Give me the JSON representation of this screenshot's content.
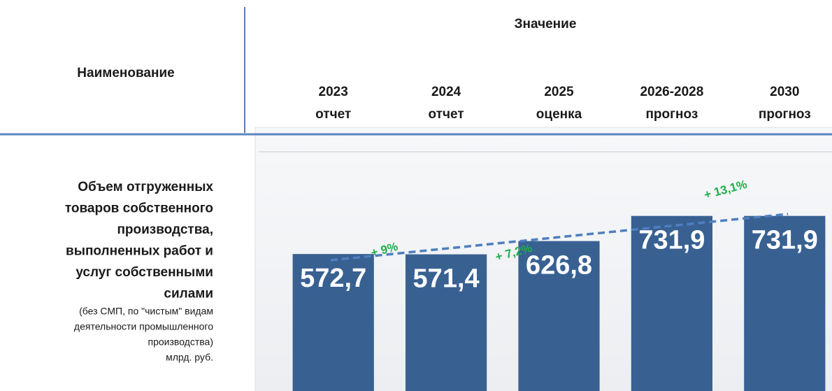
{
  "header": {
    "value_column": "Значение",
    "name_column": "Наименование"
  },
  "row": {
    "label_lines": [
      "Объем отгруженных",
      "товаров собственного",
      "производства,",
      "выполненных работ и",
      "услуг собственными",
      "силами"
    ],
    "note_lines": [
      "(без СМП, по \"чистым\" видам",
      "деятельности промышленного",
      "производства)",
      "млрд. руб."
    ]
  },
  "chart_data": {
    "type": "bar",
    "categories": [
      {
        "year": "2023",
        "status": "отчет"
      },
      {
        "year": "2024",
        "status": "отчет"
      },
      {
        "year": "2025",
        "status": "оценка"
      },
      {
        "year": "2026-2028",
        "status": "прогноз"
      },
      {
        "year": "2030",
        "status": "прогноз"
      }
    ],
    "values": [
      572.7,
      571.4,
      626.8,
      731.9,
      731.9
    ],
    "value_labels": [
      "572,7",
      "571,4",
      "626,8",
      "731,9",
      "731,9"
    ],
    "color": "#386192",
    "ylim": [
      0,
      1000
    ],
    "grid": true,
    "annotations": [
      {
        "text": "+ 9%"
      },
      {
        "text": "+ 7,2%"
      },
      {
        "text": "+ 13,1%"
      }
    ]
  }
}
